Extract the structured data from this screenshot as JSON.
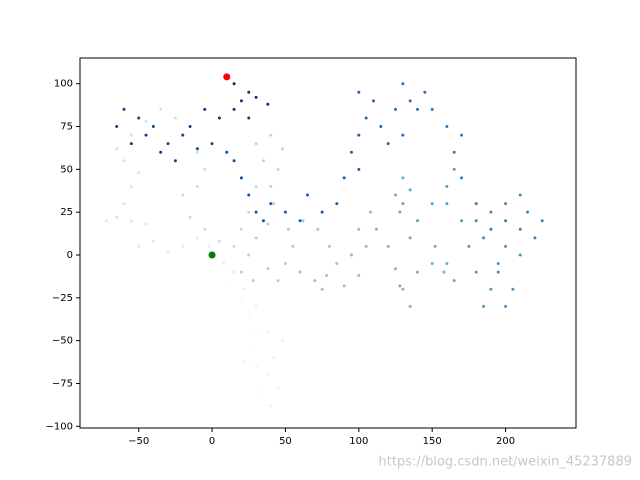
{
  "chart_data": {
    "type": "scatter",
    "colormap": "Blues",
    "xlim": [
      -90,
      248
    ],
    "ylim": [
      -101,
      115
    ],
    "xticks": [
      {
        "value": -50,
        "label": "−50"
      },
      0,
      50,
      100,
      150,
      200
    ],
    "yticks": [
      {
        "value": -100,
        "label": "−100"
      },
      {
        "value": -75,
        "label": "−75"
      },
      {
        "value": -50,
        "label": "−50"
      },
      {
        "value": -25,
        "label": "−25"
      },
      0,
      25,
      50,
      75,
      100
    ],
    "x": [
      0,
      5,
      12,
      20,
      25,
      30,
      28,
      22,
      30,
      38,
      35,
      40,
      45,
      42,
      48,
      38,
      30,
      22,
      15,
      8,
      -2,
      -10,
      -20,
      -30,
      -40,
      -50,
      -45,
      -55,
      -65,
      -72,
      -60,
      -55,
      -50,
      -60,
      -65,
      -55,
      -45,
      -35,
      -25,
      -20,
      -10,
      -5,
      -10,
      -20,
      -15,
      -5,
      5,
      15,
      20,
      25,
      30,
      35,
      30,
      40,
      48,
      45,
      40,
      42,
      38,
      30,
      25,
      20,
      28,
      38,
      45,
      50,
      55,
      52,
      62,
      72,
      80,
      85,
      78,
      70,
      60,
      75,
      90,
      100,
      95,
      105,
      100,
      108,
      112,
      120,
      125,
      130,
      135,
      128,
      140,
      150,
      158,
      165,
      160,
      152,
      135,
      128,
      125,
      130,
      135,
      130,
      140,
      150,
      160,
      165,
      160,
      170,
      175,
      180,
      185,
      190,
      195,
      200,
      210,
      205,
      200,
      195,
      185,
      180,
      190,
      200,
      210,
      215,
      225,
      220,
      210,
      200,
      190,
      180,
      170,
      165,
      170,
      160,
      150,
      145,
      140,
      135,
      130,
      125,
      130,
      120,
      115,
      110,
      100,
      105,
      100,
      95,
      100,
      90,
      85,
      75,
      65,
      60,
      50,
      40,
      35,
      30,
      25,
      20,
      15,
      10,
      0,
      -10,
      -20,
      -30,
      -40,
      -50,
      -60,
      -65,
      -55,
      -45,
      -35,
      -25,
      -15,
      -5,
      5,
      15,
      25,
      20,
      30,
      38,
      25,
      15,
      10
    ],
    "y": [
      0,
      -8,
      -15,
      -25,
      -35,
      -45,
      -55,
      -62,
      -65,
      -70,
      -80,
      -88,
      -78,
      -60,
      -50,
      -45,
      -30,
      -20,
      -10,
      -5,
      5,
      10,
      5,
      2,
      8,
      5,
      18,
      20,
      22,
      20,
      30,
      40,
      48,
      55,
      62,
      70,
      78,
      85,
      80,
      70,
      60,
      50,
      40,
      35,
      22,
      15,
      8,
      5,
      15,
      25,
      40,
      55,
      65,
      70,
      62,
      50,
      40,
      30,
      18,
      10,
      0,
      -10,
      -15,
      -8,
      -15,
      -5,
      5,
      15,
      20,
      15,
      5,
      -5,
      -12,
      -15,
      -10,
      -20,
      -18,
      -12,
      0,
      5,
      15,
      25,
      15,
      5,
      -8,
      -20,
      -30,
      -18,
      -10,
      -5,
      -10,
      -15,
      -5,
      5,
      10,
      25,
      35,
      45,
      38,
      30,
      20,
      30,
      40,
      50,
      30,
      20,
      5,
      -10,
      -30,
      -20,
      -5,
      5,
      0,
      -20,
      -30,
      -10,
      10,
      20,
      25,
      30,
      35,
      25,
      20,
      10,
      15,
      20,
      15,
      30,
      45,
      60,
      70,
      75,
      85,
      95,
      85,
      90,
      100,
      85,
      70,
      65,
      75,
      90,
      95,
      80,
      70,
      60,
      50,
      45,
      30,
      25,
      35,
      20,
      25,
      30,
      20,
      25,
      35,
      45,
      55,
      60,
      65,
      62,
      70,
      65,
      75,
      80,
      85,
      75,
      65,
      70,
      60,
      55,
      75,
      85,
      80,
      85,
      80,
      90,
      92,
      88,
      95,
      100,
      104
    ],
    "markers": [
      {
        "x": 0,
        "y": 0,
        "color": "green"
      },
      {
        "x": 10,
        "y": 104,
        "color": "red"
      }
    ]
  },
  "watermark": "https://blog.csdn.net/weixin_45237889"
}
